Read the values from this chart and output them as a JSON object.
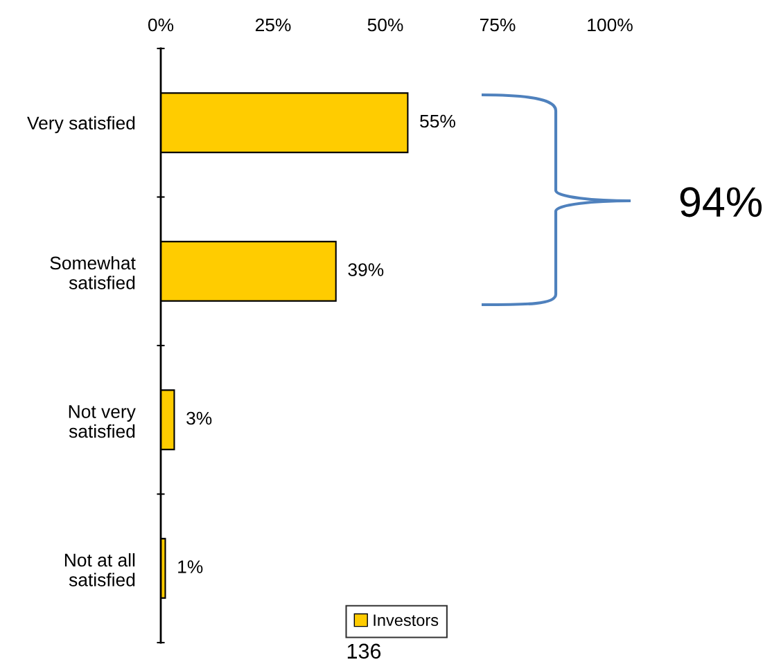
{
  "chart_data": {
    "type": "bar",
    "orientation": "horizontal",
    "categories": [
      "Very satisfied",
      "Somewhat\nsatisfied",
      "Not very\nsatisfied",
      "Not at all\nsatisfied"
    ],
    "series": [
      {
        "name": "Investors",
        "color": "#ffcc00",
        "values": [
          55,
          39,
          3,
          1
        ]
      }
    ],
    "value_labels": [
      "55%",
      "39%",
      "3%",
      "1%"
    ],
    "xlim": [
      0,
      100
    ],
    "xticks": [
      {
        "value": 0,
        "label": "0%"
      },
      {
        "value": 25,
        "label": "25%"
      },
      {
        "value": 50,
        "label": "50%"
      },
      {
        "value": 75,
        "label": "75%"
      },
      {
        "value": 100,
        "label": "100%"
      }
    ],
    "grid": false,
    "legend": "bottom",
    "annotations": [
      "94%",
      "136"
    ]
  }
}
